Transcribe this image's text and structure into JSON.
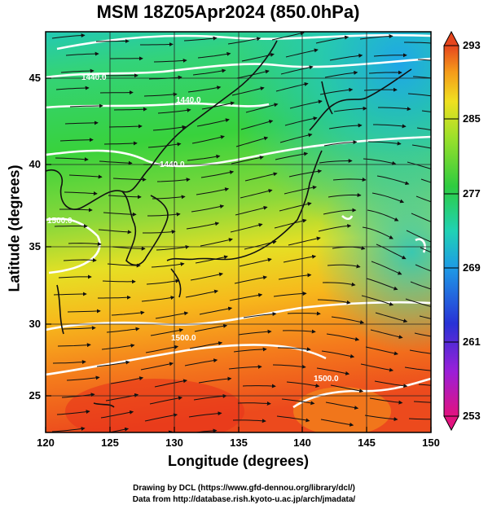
{
  "title": "MSM 18Z05Apr2024 (850.0hPa)",
  "x_axis": {
    "label": "Longitude (degrees)",
    "ticks": [
      "120",
      "125",
      "130",
      "135",
      "140",
      "145",
      "150"
    ],
    "range": [
      120,
      150
    ]
  },
  "y_axis": {
    "label": "Latitude  (degrees)",
    "ticks": [
      "25",
      "30",
      "35",
      "40",
      "45"
    ],
    "range": [
      22.5,
      47.5
    ]
  },
  "colorbar": {
    "ticks": [
      "293",
      "285",
      "277",
      "269",
      "261",
      "253"
    ],
    "range": [
      253,
      293
    ],
    "colors": [
      "#e2127f",
      "#9b1fd8",
      "#2832d6",
      "#1e9be6",
      "#20d2b4",
      "#2ecc40",
      "#9ae02a",
      "#f0e020",
      "#f59a1a",
      "#e6461e"
    ]
  },
  "contour_labels": [
    "1440.0",
    "1440.0",
    "1440.0",
    "1500.0",
    "1500.0",
    "1500.0"
  ],
  "credits": {
    "line1": "Drawing by DCL (https://www.gfd-dennou.org/library/dcl/)",
    "line2": "Data from http://database.rish.kyoto-u.ac.jp/arch/jmadata/"
  }
}
